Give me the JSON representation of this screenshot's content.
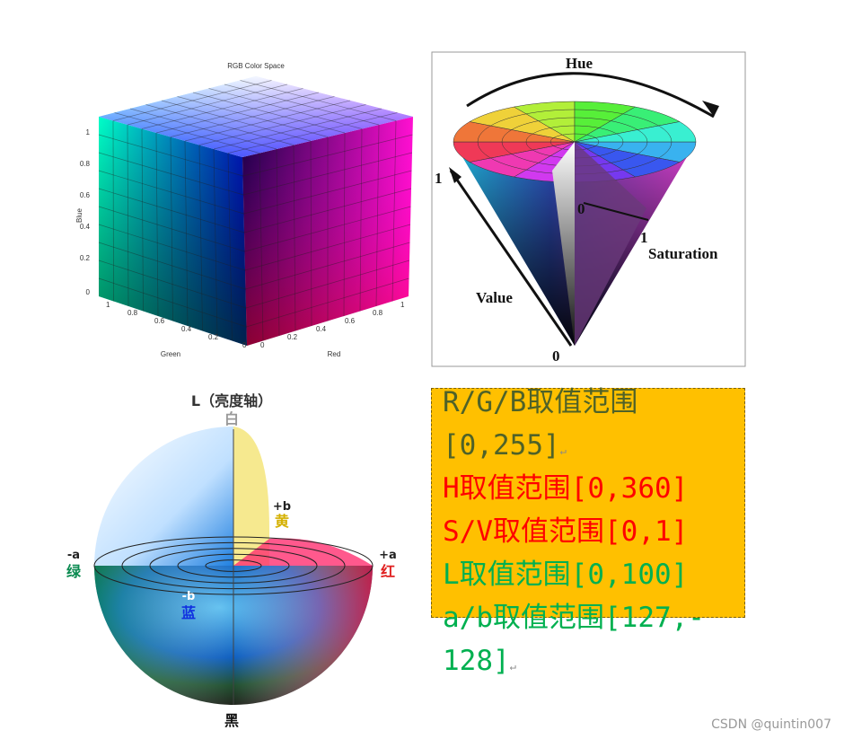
{
  "rgb_cube": {
    "title": "RGB Color Space",
    "blue_label": "Blue",
    "green_label": "Green",
    "red_label": "Red",
    "blue_ticks": [
      "0",
      "0.2",
      "0.4",
      "0.6",
      "0.8",
      "1"
    ],
    "green_ticks": [
      "1",
      "0.8",
      "0.6",
      "0.4",
      "0.2",
      "0"
    ],
    "red_ticks": [
      "0",
      "0.2",
      "0.4",
      "0.6",
      "0.8",
      "1"
    ]
  },
  "hsv_cone": {
    "hue": "Hue",
    "value_one": "1",
    "origin": "0",
    "saturation_one": "1",
    "saturation": "Saturation",
    "value": "Value",
    "apex": "0"
  },
  "lab_sphere": {
    "l_axis": "L（亮度轴）",
    "white": "白",
    "plus_b": "+b",
    "yellow": "黄",
    "minus_a": "-a",
    "green": "绿",
    "plus_a": "+a",
    "red": "红",
    "minus_b": "-b",
    "blue": "蓝",
    "black": "黑"
  },
  "note_box": {
    "lines": [
      "R/G/B取值范围",
      "[0,255]",
      "H取值范围[0,360]",
      "S/V取值范围[0,1]",
      "L取值范围[0,100]",
      "a/b取值范围[127,-",
      "128]"
    ],
    "paragraph_mark": "↵"
  },
  "footer": {
    "watermark": "CSDN @quintin007"
  }
}
